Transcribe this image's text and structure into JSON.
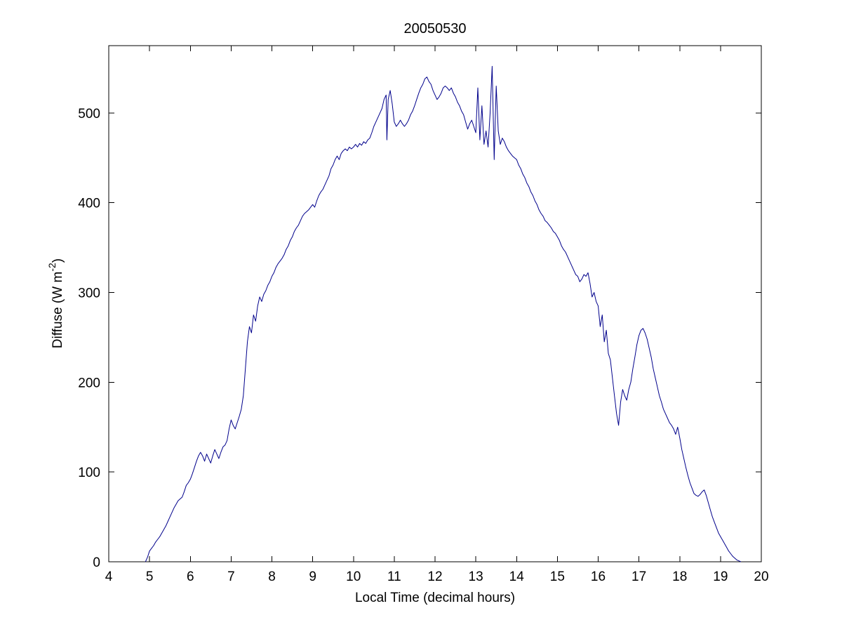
{
  "figure": {
    "background": "#ffffff"
  },
  "chart_data": {
    "type": "line",
    "title": "20050530",
    "xlabel": "Local Time (decimal hours)",
    "ylabel": {
      "pre": "Diffuse (W m",
      "sup": "-2",
      "post": ")"
    },
    "xlim": [
      4,
      20
    ],
    "ylim": [
      0,
      575
    ],
    "x_ticks": [
      4,
      5,
      6,
      7,
      8,
      9,
      10,
      11,
      12,
      13,
      14,
      15,
      16,
      17,
      18,
      19,
      20
    ],
    "y_ticks": [
      0,
      100,
      200,
      300,
      400,
      500
    ],
    "grid": false,
    "legend": null,
    "line_color": "#00008B",
    "axis_color": "#000000",
    "points": [
      [
        4.9,
        0
      ],
      [
        4.95,
        5
      ],
      [
        5.0,
        12
      ],
      [
        5.05,
        15
      ],
      [
        5.1,
        18
      ],
      [
        5.15,
        22
      ],
      [
        5.2,
        25
      ],
      [
        5.25,
        28
      ],
      [
        5.3,
        32
      ],
      [
        5.35,
        36
      ],
      [
        5.4,
        40
      ],
      [
        5.45,
        45
      ],
      [
        5.5,
        50
      ],
      [
        5.55,
        55
      ],
      [
        5.6,
        60
      ],
      [
        5.65,
        64
      ],
      [
        5.7,
        68
      ],
      [
        5.75,
        70
      ],
      [
        5.8,
        72
      ],
      [
        5.85,
        78
      ],
      [
        5.9,
        85
      ],
      [
        5.95,
        88
      ],
      [
        6.0,
        92
      ],
      [
        6.05,
        98
      ],
      [
        6.1,
        105
      ],
      [
        6.15,
        112
      ],
      [
        6.2,
        118
      ],
      [
        6.25,
        122
      ],
      [
        6.3,
        118
      ],
      [
        6.35,
        112
      ],
      [
        6.4,
        120
      ],
      [
        6.45,
        115
      ],
      [
        6.5,
        110
      ],
      [
        6.55,
        118
      ],
      [
        6.6,
        125
      ],
      [
        6.65,
        120
      ],
      [
        6.7,
        115
      ],
      [
        6.75,
        122
      ],
      [
        6.8,
        128
      ],
      [
        6.85,
        130
      ],
      [
        6.9,
        135
      ],
      [
        6.95,
        148
      ],
      [
        7.0,
        158
      ],
      [
        7.05,
        152
      ],
      [
        7.1,
        148
      ],
      [
        7.15,
        155
      ],
      [
        7.2,
        162
      ],
      [
        7.25,
        170
      ],
      [
        7.3,
        185
      ],
      [
        7.35,
        215
      ],
      [
        7.4,
        245
      ],
      [
        7.45,
        262
      ],
      [
        7.5,
        255
      ],
      [
        7.55,
        275
      ],
      [
        7.6,
        268
      ],
      [
        7.65,
        285
      ],
      [
        7.7,
        295
      ],
      [
        7.75,
        290
      ],
      [
        7.8,
        298
      ],
      [
        7.85,
        302
      ],
      [
        7.9,
        308
      ],
      [
        7.95,
        312
      ],
      [
        8.0,
        318
      ],
      [
        8.05,
        322
      ],
      [
        8.1,
        328
      ],
      [
        8.15,
        332
      ],
      [
        8.2,
        335
      ],
      [
        8.25,
        338
      ],
      [
        8.3,
        342
      ],
      [
        8.35,
        348
      ],
      [
        8.4,
        352
      ],
      [
        8.45,
        358
      ],
      [
        8.5,
        362
      ],
      [
        8.55,
        368
      ],
      [
        8.6,
        372
      ],
      [
        8.65,
        375
      ],
      [
        8.7,
        380
      ],
      [
        8.75,
        385
      ],
      [
        8.8,
        388
      ],
      [
        8.85,
        390
      ],
      [
        8.9,
        392
      ],
      [
        8.95,
        395
      ],
      [
        9.0,
        398
      ],
      [
        9.05,
        395
      ],
      [
        9.1,
        402
      ],
      [
        9.15,
        408
      ],
      [
        9.2,
        412
      ],
      [
        9.25,
        415
      ],
      [
        9.3,
        420
      ],
      [
        9.35,
        425
      ],
      [
        9.4,
        430
      ],
      [
        9.45,
        438
      ],
      [
        9.5,
        442
      ],
      [
        9.55,
        448
      ],
      [
        9.6,
        452
      ],
      [
        9.65,
        448
      ],
      [
        9.7,
        455
      ],
      [
        9.75,
        458
      ],
      [
        9.8,
        460
      ],
      [
        9.85,
        458
      ],
      [
        9.9,
        462
      ],
      [
        9.95,
        460
      ],
      [
        10.0,
        462
      ],
      [
        10.05,
        465
      ],
      [
        10.1,
        462
      ],
      [
        10.15,
        466
      ],
      [
        10.2,
        464
      ],
      [
        10.25,
        468
      ],
      [
        10.3,
        466
      ],
      [
        10.35,
        470
      ],
      [
        10.4,
        472
      ],
      [
        10.45,
        478
      ],
      [
        10.5,
        485
      ],
      [
        10.55,
        490
      ],
      [
        10.6,
        495
      ],
      [
        10.65,
        500
      ],
      [
        10.7,
        505
      ],
      [
        10.75,
        515
      ],
      [
        10.8,
        520
      ],
      [
        10.82,
        470
      ],
      [
        10.85,
        515
      ],
      [
        10.9,
        525
      ],
      [
        10.95,
        510
      ],
      [
        11.0,
        490
      ],
      [
        11.05,
        485
      ],
      [
        11.1,
        488
      ],
      [
        11.15,
        492
      ],
      [
        11.2,
        488
      ],
      [
        11.25,
        485
      ],
      [
        11.3,
        488
      ],
      [
        11.35,
        492
      ],
      [
        11.4,
        498
      ],
      [
        11.45,
        502
      ],
      [
        11.5,
        508
      ],
      [
        11.55,
        515
      ],
      [
        11.6,
        522
      ],
      [
        11.65,
        528
      ],
      [
        11.7,
        532
      ],
      [
        11.75,
        538
      ],
      [
        11.8,
        540
      ],
      [
        11.85,
        535
      ],
      [
        11.9,
        532
      ],
      [
        11.95,
        525
      ],
      [
        12.0,
        520
      ],
      [
        12.05,
        515
      ],
      [
        12.1,
        518
      ],
      [
        12.15,
        522
      ],
      [
        12.2,
        528
      ],
      [
        12.25,
        530
      ],
      [
        12.3,
        528
      ],
      [
        12.35,
        525
      ],
      [
        12.4,
        528
      ],
      [
        12.45,
        522
      ],
      [
        12.5,
        518
      ],
      [
        12.55,
        512
      ],
      [
        12.6,
        508
      ],
      [
        12.65,
        502
      ],
      [
        12.7,
        498
      ],
      [
        12.75,
        490
      ],
      [
        12.8,
        482
      ],
      [
        12.85,
        488
      ],
      [
        12.9,
        492
      ],
      [
        12.95,
        485
      ],
      [
        13.0,
        478
      ],
      [
        13.05,
        528
      ],
      [
        13.1,
        470
      ],
      [
        13.15,
        508
      ],
      [
        13.2,
        465
      ],
      [
        13.25,
        480
      ],
      [
        13.3,
        462
      ],
      [
        13.35,
        500
      ],
      [
        13.4,
        552
      ],
      [
        13.45,
        448
      ],
      [
        13.5,
        530
      ],
      [
        13.55,
        480
      ],
      [
        13.6,
        465
      ],
      [
        13.65,
        472
      ],
      [
        13.7,
        468
      ],
      [
        13.75,
        462
      ],
      [
        13.8,
        458
      ],
      [
        13.85,
        455
      ],
      [
        13.9,
        452
      ],
      [
        13.95,
        450
      ],
      [
        14.0,
        448
      ],
      [
        14.05,
        442
      ],
      [
        14.1,
        438
      ],
      [
        14.15,
        432
      ],
      [
        14.2,
        428
      ],
      [
        14.25,
        422
      ],
      [
        14.3,
        418
      ],
      [
        14.35,
        412
      ],
      [
        14.4,
        408
      ],
      [
        14.45,
        402
      ],
      [
        14.5,
        398
      ],
      [
        14.55,
        392
      ],
      [
        14.6,
        388
      ],
      [
        14.65,
        385
      ],
      [
        14.7,
        380
      ],
      [
        14.75,
        378
      ],
      [
        14.8,
        375
      ],
      [
        14.85,
        372
      ],
      [
        14.9,
        368
      ],
      [
        14.95,
        366
      ],
      [
        15.0,
        362
      ],
      [
        15.05,
        358
      ],
      [
        15.1,
        352
      ],
      [
        15.15,
        348
      ],
      [
        15.2,
        345
      ],
      [
        15.25,
        340
      ],
      [
        15.3,
        335
      ],
      [
        15.35,
        330
      ],
      [
        15.4,
        325
      ],
      [
        15.45,
        320
      ],
      [
        15.5,
        318
      ],
      [
        15.55,
        312
      ],
      [
        15.6,
        315
      ],
      [
        15.65,
        320
      ],
      [
        15.7,
        318
      ],
      [
        15.75,
        322
      ],
      [
        15.8,
        310
      ],
      [
        15.85,
        295
      ],
      [
        15.9,
        300
      ],
      [
        15.95,
        290
      ],
      [
        16.0,
        285
      ],
      [
        16.05,
        262
      ],
      [
        16.1,
        275
      ],
      [
        16.15,
        245
      ],
      [
        16.2,
        258
      ],
      [
        16.25,
        232
      ],
      [
        16.3,
        225
      ],
      [
        16.35,
        205
      ],
      [
        16.4,
        185
      ],
      [
        16.45,
        165
      ],
      [
        16.5,
        152
      ],
      [
        16.55,
        178
      ],
      [
        16.6,
        192
      ],
      [
        16.65,
        185
      ],
      [
        16.7,
        180
      ],
      [
        16.75,
        192
      ],
      [
        16.8,
        200
      ],
      [
        16.85,
        215
      ],
      [
        16.9,
        228
      ],
      [
        16.95,
        242
      ],
      [
        17.0,
        252
      ],
      [
        17.05,
        258
      ],
      [
        17.1,
        260
      ],
      [
        17.15,
        255
      ],
      [
        17.2,
        248
      ],
      [
        17.25,
        238
      ],
      [
        17.3,
        228
      ],
      [
        17.35,
        215
      ],
      [
        17.4,
        205
      ],
      [
        17.45,
        195
      ],
      [
        17.5,
        185
      ],
      [
        17.55,
        178
      ],
      [
        17.6,
        170
      ],
      [
        17.65,
        165
      ],
      [
        17.7,
        160
      ],
      [
        17.75,
        155
      ],
      [
        17.8,
        152
      ],
      [
        17.85,
        148
      ],
      [
        17.9,
        142
      ],
      [
        17.95,
        150
      ],
      [
        18.0,
        138
      ],
      [
        18.05,
        125
      ],
      [
        18.1,
        115
      ],
      [
        18.15,
        105
      ],
      [
        18.2,
        96
      ],
      [
        18.25,
        88
      ],
      [
        18.3,
        82
      ],
      [
        18.35,
        76
      ],
      [
        18.4,
        74
      ],
      [
        18.45,
        73
      ],
      [
        18.5,
        75
      ],
      [
        18.55,
        78
      ],
      [
        18.6,
        80
      ],
      [
        18.65,
        74
      ],
      [
        18.7,
        66
      ],
      [
        18.75,
        58
      ],
      [
        18.8,
        50
      ],
      [
        18.85,
        44
      ],
      [
        18.9,
        38
      ],
      [
        18.95,
        32
      ],
      [
        19.0,
        28
      ],
      [
        19.05,
        24
      ],
      [
        19.1,
        20
      ],
      [
        19.15,
        16
      ],
      [
        19.2,
        12
      ],
      [
        19.25,
        9
      ],
      [
        19.3,
        6
      ],
      [
        19.35,
        4
      ],
      [
        19.4,
        2
      ],
      [
        19.45,
        1
      ],
      [
        19.5,
        0
      ]
    ]
  }
}
